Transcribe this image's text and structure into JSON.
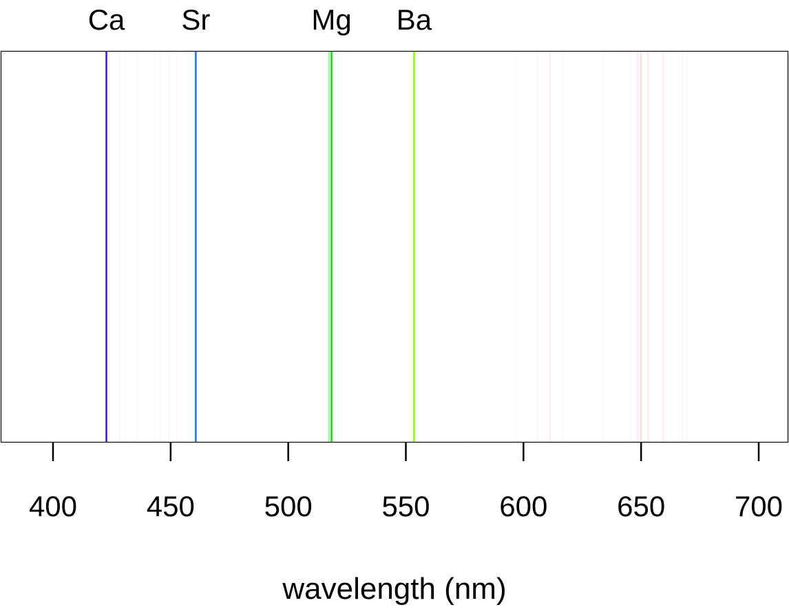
{
  "chart_data": {
    "type": "spectrum",
    "title": "",
    "xlabel": "wavelength (nm)",
    "ylabel": "",
    "xlim": [
      377.5,
      711.5
    ],
    "xticks": [
      400,
      450,
      500,
      550,
      600,
      650,
      700
    ],
    "grid": false,
    "legend": "none",
    "labeled_lines": [
      {
        "label": "Ca",
        "wavelength": 422.7,
        "color": "#4a10d0",
        "intensity": 1.0
      },
      {
        "label": "Sr",
        "wavelength": 460.7,
        "color": "#1f6fff",
        "intensity": 1.0
      },
      {
        "label": "Mg",
        "wavelength": 518.4,
        "color": "#00e600",
        "intensity": 1.0
      },
      {
        "label": "Ba",
        "wavelength": 553.5,
        "color": "#88ff00",
        "intensity": 1.0
      }
    ],
    "unlabeled_lines": [
      {
        "wavelength": 517.3,
        "color": "#66ee66",
        "intensity": 0.6
      },
      {
        "wavelength": 428.3,
        "color": "#6060ff",
        "intensity": 0.05
      },
      {
        "wavelength": 430.8,
        "color": "#6060ff",
        "intensity": 0.05
      },
      {
        "wavelength": 435.5,
        "color": "#6060ff",
        "intensity": 0.05
      },
      {
        "wavelength": 443.5,
        "color": "#6060ff",
        "intensity": 0.05
      },
      {
        "wavelength": 445.5,
        "color": "#6060ff",
        "intensity": 0.04
      },
      {
        "wavelength": 449.4,
        "color": "#6060ff",
        "intensity": 0.04
      },
      {
        "wavelength": 452.5,
        "color": "#6060ff",
        "intensity": 0.04
      },
      {
        "wavelength": 578.0,
        "color": "#ffd080",
        "intensity": 0.05
      },
      {
        "wavelength": 597.0,
        "color": "#ffa060",
        "intensity": 0.05
      },
      {
        "wavelength": 606.0,
        "color": "#ffa060",
        "intensity": 0.06
      },
      {
        "wavelength": 611.3,
        "color": "#ff9040",
        "intensity": 0.15
      },
      {
        "wavelength": 616.6,
        "color": "#ff9040",
        "intensity": 0.05
      },
      {
        "wavelength": 634.0,
        "color": "#ff6060",
        "intensity": 0.04
      },
      {
        "wavelength": 645.5,
        "color": "#ff5050",
        "intensity": 0.05
      },
      {
        "wavelength": 648.5,
        "color": "#ff4040",
        "intensity": 0.12
      },
      {
        "wavelength": 649.9,
        "color": "#ff4040",
        "intensity": 0.2
      },
      {
        "wavelength": 652.9,
        "color": "#ff4040",
        "intensity": 0.12
      },
      {
        "wavelength": 659.4,
        "color": "#ff4040",
        "intensity": 0.1
      },
      {
        "wavelength": 667.7,
        "color": "#ff4040",
        "intensity": 0.06
      },
      {
        "wavelength": 669.4,
        "color": "#ff4040",
        "intensity": 0.05
      }
    ]
  }
}
